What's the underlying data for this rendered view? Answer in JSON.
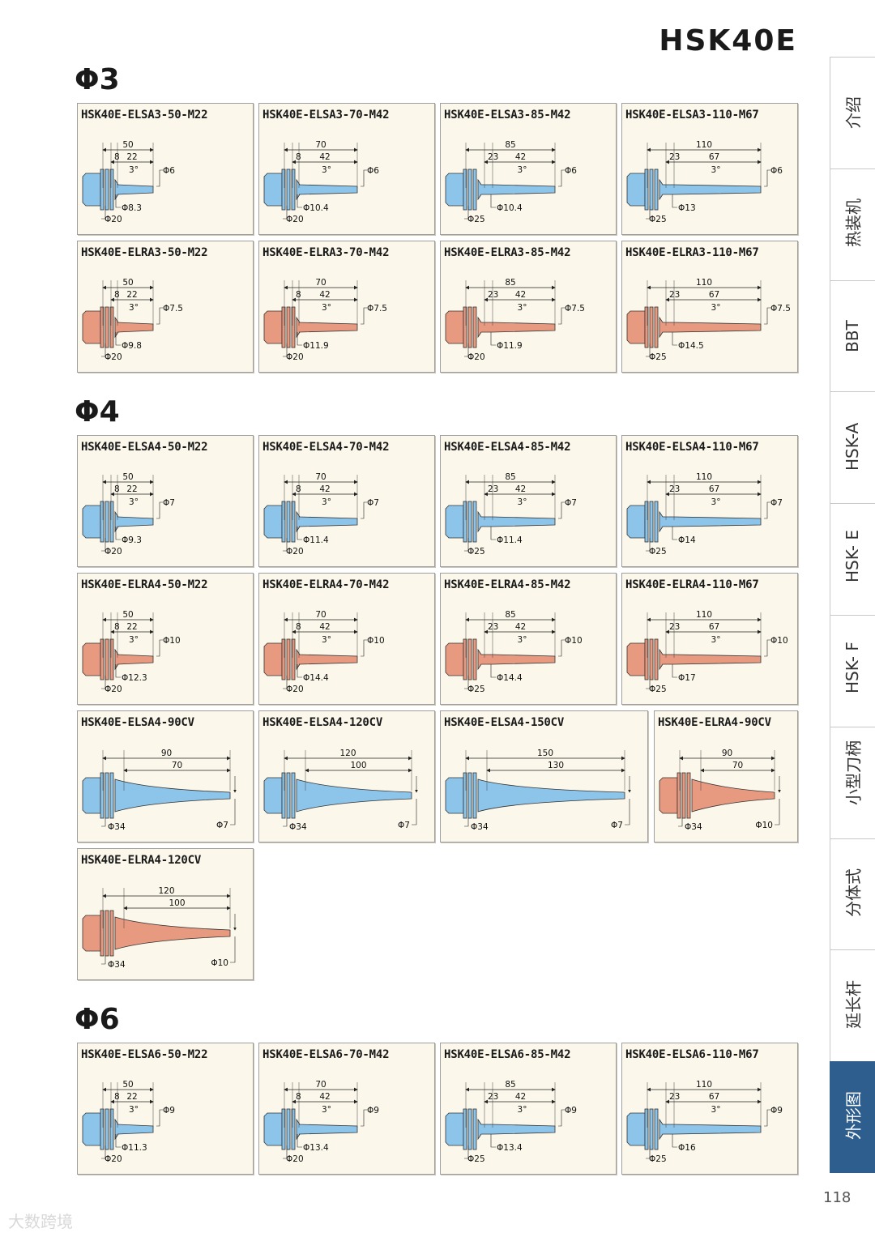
{
  "page_title": "HSK40E",
  "page_number": "118",
  "watermark": "大数跨境",
  "colors": {
    "blue_fill": "#8cc4ea",
    "red_fill": "#e89a80",
    "tab_active": "#2e5e8e",
    "card_bg": "#fbf7ea"
  },
  "side_tabs": [
    "介绍",
    "热装机",
    "BBT",
    "HSK-A",
    "HSK- E",
    "HSK- F",
    "小型刀柄",
    "分体式",
    "延长杆",
    "外形图"
  ],
  "sections": [
    {
      "title": "Φ3",
      "cards": [
        {
          "name": "HSK40E-ELSA3-50-M22",
          "kind": "straight",
          "color": "blue",
          "total": "50",
          "seg1": "8",
          "seg2": "22",
          "angle": "3°",
          "tip": "Φ6",
          "neck": "Φ8.3",
          "body": "Φ20"
        },
        {
          "name": "HSK40E-ELSA3-70-M42",
          "kind": "straight",
          "color": "blue",
          "total": "70",
          "seg1": "8",
          "seg2": "42",
          "angle": "3°",
          "tip": "Φ6",
          "neck": "Φ10.4",
          "body": "Φ20"
        },
        {
          "name": "HSK40E-ELSA3-85-M42",
          "kind": "straight",
          "color": "blue",
          "total": "85",
          "seg1": "23",
          "seg2": "42",
          "angle": "3°",
          "tip": "Φ6",
          "neck": "Φ10.4",
          "body": "Φ25"
        },
        {
          "name": "HSK40E-ELSA3-110-M67",
          "kind": "straight",
          "color": "blue",
          "total": "110",
          "seg1": "23",
          "seg2": "67",
          "angle": "3°",
          "tip": "Φ6",
          "neck": "Φ13",
          "body": "Φ25"
        },
        {
          "name": "HSK40E-ELRA3-50-M22",
          "kind": "straight",
          "color": "red",
          "total": "50",
          "seg1": "8",
          "seg2": "22",
          "angle": "3°",
          "tip": "Φ7.5",
          "neck": "Φ9.8",
          "body": "Φ20"
        },
        {
          "name": "HSK40E-ELRA3-70-M42",
          "kind": "straight",
          "color": "red",
          "total": "70",
          "seg1": "8",
          "seg2": "42",
          "angle": "3°",
          "tip": "Φ7.5",
          "neck": "Φ11.9",
          "body": "Φ20"
        },
        {
          "name": "HSK40E-ELRA3-85-M42",
          "kind": "straight",
          "color": "red",
          "total": "85",
          "seg1": "23",
          "seg2": "42",
          "angle": "3°",
          "tip": "Φ7.5",
          "neck": "Φ11.9",
          "body": "Φ20"
        },
        {
          "name": "HSK40E-ELRA3-110-M67",
          "kind": "straight",
          "color": "red",
          "total": "110",
          "seg1": "23",
          "seg2": "67",
          "angle": "3°",
          "tip": "Φ7.5",
          "neck": "Φ14.5",
          "body": "Φ25"
        }
      ]
    },
    {
      "title": "Φ4",
      "cards": [
        {
          "name": "HSK40E-ELSA4-50-M22",
          "kind": "straight",
          "color": "blue",
          "total": "50",
          "seg1": "8",
          "seg2": "22",
          "angle": "3°",
          "tip": "Φ7",
          "neck": "Φ9.3",
          "body": "Φ20"
        },
        {
          "name": "HSK40E-ELSA4-70-M42",
          "kind": "straight",
          "color": "blue",
          "total": "70",
          "seg1": "8",
          "seg2": "42",
          "angle": "3°",
          "tip": "Φ7",
          "neck": "Φ11.4",
          "body": "Φ20"
        },
        {
          "name": "HSK40E-ELSA4-85-M42",
          "kind": "straight",
          "color": "blue",
          "total": "85",
          "seg1": "23",
          "seg2": "42",
          "angle": "3°",
          "tip": "Φ7",
          "neck": "Φ11.4",
          "body": "Φ25"
        },
        {
          "name": "HSK40E-ELSA4-110-M67",
          "kind": "straight",
          "color": "blue",
          "total": "110",
          "seg1": "23",
          "seg2": "67",
          "angle": "3°",
          "tip": "Φ7",
          "neck": "Φ14",
          "body": "Φ25"
        },
        {
          "name": "HSK40E-ELRA4-50-M22",
          "kind": "straight",
          "color": "red",
          "total": "50",
          "seg1": "8",
          "seg2": "22",
          "angle": "3°",
          "tip": "Φ10",
          "neck": "Φ12.3",
          "body": "Φ20"
        },
        {
          "name": "HSK40E-ELRA4-70-M42",
          "kind": "straight",
          "color": "red",
          "total": "70",
          "seg1": "8",
          "seg2": "42",
          "angle": "3°",
          "tip": "Φ10",
          "neck": "Φ14.4",
          "body": "Φ20"
        },
        {
          "name": "HSK40E-ELRA4-85-M42",
          "kind": "straight",
          "color": "red",
          "total": "85",
          "seg1": "23",
          "seg2": "42",
          "angle": "3°",
          "tip": "Φ10",
          "neck": "Φ14.4",
          "body": "Φ25"
        },
        {
          "name": "HSK40E-ELRA4-110-M67",
          "kind": "straight",
          "color": "red",
          "total": "110",
          "seg1": "23",
          "seg2": "67",
          "angle": "3°",
          "tip": "Φ10",
          "neck": "Φ17",
          "body": "Φ25"
        },
        {
          "name": "HSK40E-ELSA4-90CV",
          "kind": "cone",
          "color": "blue",
          "total": "90",
          "inner": "70",
          "tip": "Φ7",
          "body": "Φ34"
        },
        {
          "name": "HSK40E-ELSA4-120CV",
          "kind": "cone",
          "color": "blue",
          "total": "120",
          "inner": "100",
          "tip": "Φ7",
          "body": "Φ34"
        },
        {
          "name": "HSK40E-ELSA4-150CV",
          "kind": "cone",
          "color": "blue",
          "total": "150",
          "inner": "130",
          "tip": "Φ7",
          "body": "Φ34"
        },
        {
          "name": "HSK40E-ELRA4-90CV",
          "kind": "cone",
          "color": "red",
          "total": "90",
          "inner": "70",
          "tip": "Φ10",
          "body": "Φ34"
        },
        {
          "name": "HSK40E-ELRA4-120CV",
          "kind": "cone",
          "color": "red",
          "total": "120",
          "inner": "100",
          "tip": "Φ10",
          "body": "Φ34"
        }
      ]
    },
    {
      "title": "Φ6",
      "cards": [
        {
          "name": "HSK40E-ELSA6-50-M22",
          "kind": "straight",
          "color": "blue",
          "total": "50",
          "seg1": "8",
          "seg2": "22",
          "angle": "3°",
          "tip": "Φ9",
          "neck": "Φ11.3",
          "body": "Φ20"
        },
        {
          "name": "HSK40E-ELSA6-70-M42",
          "kind": "straight",
          "color": "blue",
          "total": "70",
          "seg1": "8",
          "seg2": "42",
          "angle": "3°",
          "tip": "Φ9",
          "neck": "Φ13.4",
          "body": "Φ20"
        },
        {
          "name": "HSK40E-ELSA6-85-M42",
          "kind": "straight",
          "color": "blue",
          "total": "85",
          "seg1": "23",
          "seg2": "42",
          "angle": "3°",
          "tip": "Φ9",
          "neck": "Φ13.4",
          "body": "Φ25"
        },
        {
          "name": "HSK40E-ELSA6-110-M67",
          "kind": "straight",
          "color": "blue",
          "total": "110",
          "seg1": "23",
          "seg2": "67",
          "angle": "3°",
          "tip": "Φ9",
          "neck": "Φ16",
          "body": "Φ25"
        }
      ]
    }
  ]
}
